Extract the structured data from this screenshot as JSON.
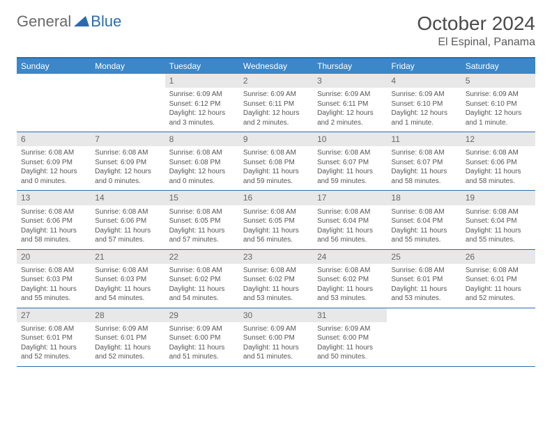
{
  "branding": {
    "text1": "General",
    "text2": "Blue",
    "icon_color": "#2a6bb0"
  },
  "header": {
    "month_title": "October 2024",
    "location": "El Espinal, Panama"
  },
  "colors": {
    "header_bg": "#3b87c8",
    "border": "#2a6bb0",
    "daynum_bg": "#e8e8e8",
    "text": "#555555"
  },
  "day_names": [
    "Sunday",
    "Monday",
    "Tuesday",
    "Wednesday",
    "Thursday",
    "Friday",
    "Saturday"
  ],
  "weeks": [
    [
      {
        "n": "",
        "s": "",
        "ss": "",
        "d": "",
        "empty": true
      },
      {
        "n": "",
        "s": "",
        "ss": "",
        "d": "",
        "empty": true
      },
      {
        "n": "1",
        "s": "Sunrise: 6:09 AM",
        "ss": "Sunset: 6:12 PM",
        "d": "Daylight: 12 hours and 3 minutes."
      },
      {
        "n": "2",
        "s": "Sunrise: 6:09 AM",
        "ss": "Sunset: 6:11 PM",
        "d": "Daylight: 12 hours and 2 minutes."
      },
      {
        "n": "3",
        "s": "Sunrise: 6:09 AM",
        "ss": "Sunset: 6:11 PM",
        "d": "Daylight: 12 hours and 2 minutes."
      },
      {
        "n": "4",
        "s": "Sunrise: 6:09 AM",
        "ss": "Sunset: 6:10 PM",
        "d": "Daylight: 12 hours and 1 minute."
      },
      {
        "n": "5",
        "s": "Sunrise: 6:09 AM",
        "ss": "Sunset: 6:10 PM",
        "d": "Daylight: 12 hours and 1 minute."
      }
    ],
    [
      {
        "n": "6",
        "s": "Sunrise: 6:08 AM",
        "ss": "Sunset: 6:09 PM",
        "d": "Daylight: 12 hours and 0 minutes."
      },
      {
        "n": "7",
        "s": "Sunrise: 6:08 AM",
        "ss": "Sunset: 6:09 PM",
        "d": "Daylight: 12 hours and 0 minutes."
      },
      {
        "n": "8",
        "s": "Sunrise: 6:08 AM",
        "ss": "Sunset: 6:08 PM",
        "d": "Daylight: 12 hours and 0 minutes."
      },
      {
        "n": "9",
        "s": "Sunrise: 6:08 AM",
        "ss": "Sunset: 6:08 PM",
        "d": "Daylight: 11 hours and 59 minutes."
      },
      {
        "n": "10",
        "s": "Sunrise: 6:08 AM",
        "ss": "Sunset: 6:07 PM",
        "d": "Daylight: 11 hours and 59 minutes."
      },
      {
        "n": "11",
        "s": "Sunrise: 6:08 AM",
        "ss": "Sunset: 6:07 PM",
        "d": "Daylight: 11 hours and 58 minutes."
      },
      {
        "n": "12",
        "s": "Sunrise: 6:08 AM",
        "ss": "Sunset: 6:06 PM",
        "d": "Daylight: 11 hours and 58 minutes."
      }
    ],
    [
      {
        "n": "13",
        "s": "Sunrise: 6:08 AM",
        "ss": "Sunset: 6:06 PM",
        "d": "Daylight: 11 hours and 58 minutes."
      },
      {
        "n": "14",
        "s": "Sunrise: 6:08 AM",
        "ss": "Sunset: 6:06 PM",
        "d": "Daylight: 11 hours and 57 minutes."
      },
      {
        "n": "15",
        "s": "Sunrise: 6:08 AM",
        "ss": "Sunset: 6:05 PM",
        "d": "Daylight: 11 hours and 57 minutes."
      },
      {
        "n": "16",
        "s": "Sunrise: 6:08 AM",
        "ss": "Sunset: 6:05 PM",
        "d": "Daylight: 11 hours and 56 minutes."
      },
      {
        "n": "17",
        "s": "Sunrise: 6:08 AM",
        "ss": "Sunset: 6:04 PM",
        "d": "Daylight: 11 hours and 56 minutes."
      },
      {
        "n": "18",
        "s": "Sunrise: 6:08 AM",
        "ss": "Sunset: 6:04 PM",
        "d": "Daylight: 11 hours and 55 minutes."
      },
      {
        "n": "19",
        "s": "Sunrise: 6:08 AM",
        "ss": "Sunset: 6:04 PM",
        "d": "Daylight: 11 hours and 55 minutes."
      }
    ],
    [
      {
        "n": "20",
        "s": "Sunrise: 6:08 AM",
        "ss": "Sunset: 6:03 PM",
        "d": "Daylight: 11 hours and 55 minutes."
      },
      {
        "n": "21",
        "s": "Sunrise: 6:08 AM",
        "ss": "Sunset: 6:03 PM",
        "d": "Daylight: 11 hours and 54 minutes."
      },
      {
        "n": "22",
        "s": "Sunrise: 6:08 AM",
        "ss": "Sunset: 6:02 PM",
        "d": "Daylight: 11 hours and 54 minutes."
      },
      {
        "n": "23",
        "s": "Sunrise: 6:08 AM",
        "ss": "Sunset: 6:02 PM",
        "d": "Daylight: 11 hours and 53 minutes."
      },
      {
        "n": "24",
        "s": "Sunrise: 6:08 AM",
        "ss": "Sunset: 6:02 PM",
        "d": "Daylight: 11 hours and 53 minutes."
      },
      {
        "n": "25",
        "s": "Sunrise: 6:08 AM",
        "ss": "Sunset: 6:01 PM",
        "d": "Daylight: 11 hours and 53 minutes."
      },
      {
        "n": "26",
        "s": "Sunrise: 6:08 AM",
        "ss": "Sunset: 6:01 PM",
        "d": "Daylight: 11 hours and 52 minutes."
      }
    ],
    [
      {
        "n": "27",
        "s": "Sunrise: 6:08 AM",
        "ss": "Sunset: 6:01 PM",
        "d": "Daylight: 11 hours and 52 minutes."
      },
      {
        "n": "28",
        "s": "Sunrise: 6:09 AM",
        "ss": "Sunset: 6:01 PM",
        "d": "Daylight: 11 hours and 52 minutes."
      },
      {
        "n": "29",
        "s": "Sunrise: 6:09 AM",
        "ss": "Sunset: 6:00 PM",
        "d": "Daylight: 11 hours and 51 minutes."
      },
      {
        "n": "30",
        "s": "Sunrise: 6:09 AM",
        "ss": "Sunset: 6:00 PM",
        "d": "Daylight: 11 hours and 51 minutes."
      },
      {
        "n": "31",
        "s": "Sunrise: 6:09 AM",
        "ss": "Sunset: 6:00 PM",
        "d": "Daylight: 11 hours and 50 minutes."
      },
      {
        "n": "",
        "s": "",
        "ss": "",
        "d": "",
        "empty": true
      },
      {
        "n": "",
        "s": "",
        "ss": "",
        "d": "",
        "empty": true
      }
    ]
  ]
}
